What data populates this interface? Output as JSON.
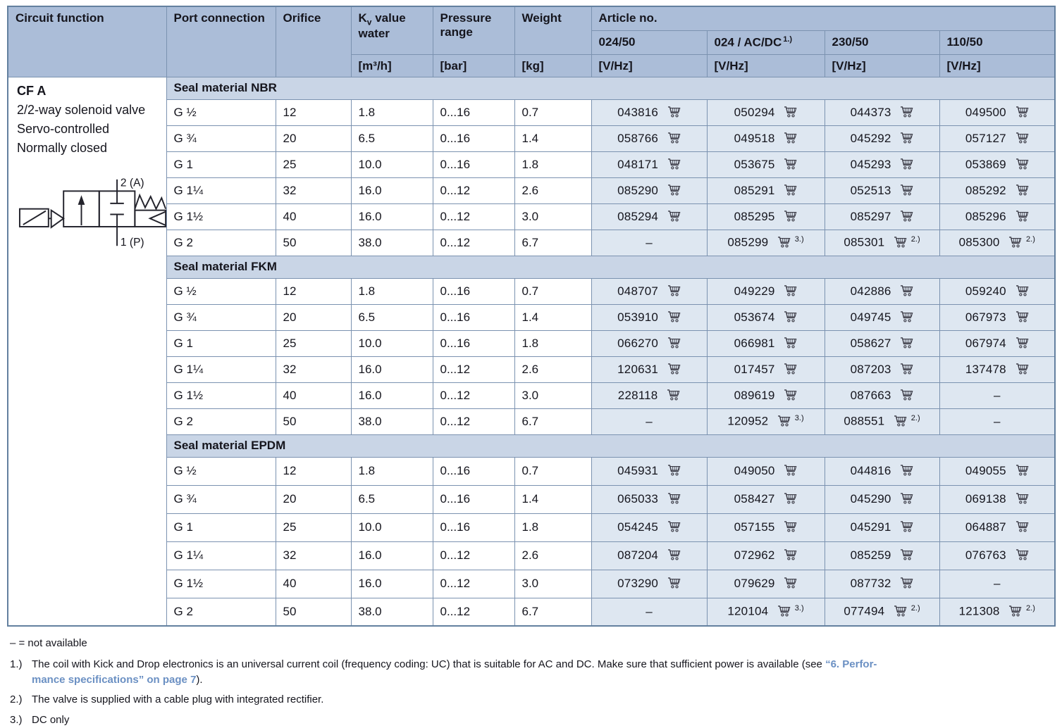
{
  "header": {
    "circuit_function": "Circuit function",
    "port_connection": "Port connection",
    "orifice": "Orifice",
    "kv_prefix": "K",
    "kv_sub": "v",
    "kv_suffix": " value water",
    "pressure_range": "Pressure range",
    "weight": "Weight",
    "article_group": "Article no.",
    "article_columns": [
      {
        "label": "024/50",
        "sup": ""
      },
      {
        "label": "024 / AC/DC",
        "sup": "1.)"
      },
      {
        "label": "230/50",
        "sup": ""
      },
      {
        "label": "110/50",
        "sup": ""
      }
    ],
    "unit_kv": "[m³/h]",
    "unit_pressure": "[bar]",
    "unit_weight": "[kg]",
    "unit_voltage": "[V/Hz]"
  },
  "circuit": {
    "code": "CF A",
    "description_lines": [
      "2/2-way solenoid valve",
      "Servo-controlled",
      "Normally closed"
    ],
    "port_top": "2 (A)",
    "port_bottom": "1 (P)"
  },
  "sections": [
    {
      "title": "Seal material NBR",
      "rows": [
        {
          "port": "G ½",
          "orifice": "12",
          "kv": "1.8",
          "pressure": "0...16",
          "weight": "0.7",
          "articles": [
            {
              "no": "043816",
              "cart": true,
              "sup": ""
            },
            {
              "no": "050294",
              "cart": true,
              "sup": ""
            },
            {
              "no": "044373",
              "cart": true,
              "sup": ""
            },
            {
              "no": "049500",
              "cart": true,
              "sup": ""
            }
          ]
        },
        {
          "port": "G ¾",
          "orifice": "20",
          "kv": "6.5",
          "pressure": "0...16",
          "weight": "1.4",
          "articles": [
            {
              "no": "058766",
              "cart": true,
              "sup": ""
            },
            {
              "no": "049518",
              "cart": true,
              "sup": ""
            },
            {
              "no": "045292",
              "cart": true,
              "sup": ""
            },
            {
              "no": "057127",
              "cart": true,
              "sup": ""
            }
          ]
        },
        {
          "port": "G 1",
          "orifice": "25",
          "kv": "10.0",
          "pressure": "0...16",
          "weight": "1.8",
          "articles": [
            {
              "no": "048171",
              "cart": true,
              "sup": ""
            },
            {
              "no": "053675",
              "cart": true,
              "sup": ""
            },
            {
              "no": "045293",
              "cart": true,
              "sup": ""
            },
            {
              "no": "053869",
              "cart": true,
              "sup": ""
            }
          ]
        },
        {
          "port": "G 1¼",
          "orifice": "32",
          "kv": "16.0",
          "pressure": "0...12",
          "weight": "2.6",
          "articles": [
            {
              "no": "085290",
              "cart": true,
              "sup": ""
            },
            {
              "no": "085291",
              "cart": true,
              "sup": ""
            },
            {
              "no": "052513",
              "cart": true,
              "sup": ""
            },
            {
              "no": "085292",
              "cart": true,
              "sup": ""
            }
          ]
        },
        {
          "port": "G 1½",
          "orifice": "40",
          "kv": "16.0",
          "pressure": "0...12",
          "weight": "3.0",
          "articles": [
            {
              "no": "085294",
              "cart": true,
              "sup": ""
            },
            {
              "no": "085295",
              "cart": true,
              "sup": ""
            },
            {
              "no": "085297",
              "cart": true,
              "sup": ""
            },
            {
              "no": "085296",
              "cart": true,
              "sup": ""
            }
          ]
        },
        {
          "port": "G 2",
          "orifice": "50",
          "kv": "38.0",
          "pressure": "0...12",
          "weight": "6.7",
          "articles": [
            {
              "no": "–",
              "cart": false,
              "sup": ""
            },
            {
              "no": "085299",
              "cart": true,
              "sup": "3.)"
            },
            {
              "no": "085301",
              "cart": true,
              "sup": "2.)"
            },
            {
              "no": "085300",
              "cart": true,
              "sup": "2.)"
            }
          ]
        }
      ]
    },
    {
      "title": "Seal material FKM",
      "rows": [
        {
          "port": "G ½",
          "orifice": "12",
          "kv": "1.8",
          "pressure": "0...16",
          "weight": "0.7",
          "articles": [
            {
              "no": "048707",
              "cart": true,
              "sup": ""
            },
            {
              "no": "049229",
              "cart": true,
              "sup": ""
            },
            {
              "no": "042886",
              "cart": true,
              "sup": ""
            },
            {
              "no": "059240",
              "cart": true,
              "sup": ""
            }
          ]
        },
        {
          "port": "G ¾",
          "orifice": "20",
          "kv": "6.5",
          "pressure": "0...16",
          "weight": "1.4",
          "articles": [
            {
              "no": "053910",
              "cart": true,
              "sup": ""
            },
            {
              "no": "053674",
              "cart": true,
              "sup": ""
            },
            {
              "no": "049745",
              "cart": true,
              "sup": ""
            },
            {
              "no": "067973",
              "cart": true,
              "sup": ""
            }
          ]
        },
        {
          "port": "G 1",
          "orifice": "25",
          "kv": "10.0",
          "pressure": "0...16",
          "weight": "1.8",
          "articles": [
            {
              "no": "066270",
              "cart": true,
              "sup": ""
            },
            {
              "no": "066981",
              "cart": true,
              "sup": ""
            },
            {
              "no": "058627",
              "cart": true,
              "sup": ""
            },
            {
              "no": "067974",
              "cart": true,
              "sup": ""
            }
          ]
        },
        {
          "port": "G 1¼",
          "orifice": "32",
          "kv": "16.0",
          "pressure": "0...12",
          "weight": "2.6",
          "articles": [
            {
              "no": "120631",
              "cart": true,
              "sup": ""
            },
            {
              "no": "017457",
              "cart": true,
              "sup": ""
            },
            {
              "no": "087203",
              "cart": true,
              "sup": ""
            },
            {
              "no": "137478",
              "cart": true,
              "sup": ""
            }
          ]
        },
        {
          "port": "G 1½",
          "orifice": "40",
          "kv": "16.0",
          "pressure": "0...12",
          "weight": "3.0",
          "articles": [
            {
              "no": "228118",
              "cart": true,
              "sup": ""
            },
            {
              "no": "089619",
              "cart": true,
              "sup": ""
            },
            {
              "no": "087663",
              "cart": true,
              "sup": ""
            },
            {
              "no": "–",
              "cart": false,
              "sup": ""
            }
          ]
        },
        {
          "port": "G 2",
          "orifice": "50",
          "kv": "38.0",
          "pressure": "0...12",
          "weight": "6.7",
          "articles": [
            {
              "no": "–",
              "cart": false,
              "sup": ""
            },
            {
              "no": "120952",
              "cart": true,
              "sup": "3.)"
            },
            {
              "no": "088551",
              "cart": true,
              "sup": "2.)"
            },
            {
              "no": "–",
              "cart": false,
              "sup": ""
            }
          ]
        }
      ]
    },
    {
      "title": "Seal material EPDM",
      "rows": [
        {
          "port": "G ½",
          "orifice": "12",
          "kv": "1.8",
          "pressure": "0...16",
          "weight": "0.7",
          "articles": [
            {
              "no": "045931",
              "cart": true,
              "sup": ""
            },
            {
              "no": "049050",
              "cart": true,
              "sup": ""
            },
            {
              "no": "044816",
              "cart": true,
              "sup": ""
            },
            {
              "no": "049055",
              "cart": true,
              "sup": ""
            }
          ]
        },
        {
          "port": "G ¾",
          "orifice": "20",
          "kv": "6.5",
          "pressure": "0...16",
          "weight": "1.4",
          "articles": [
            {
              "no": "065033",
              "cart": true,
              "sup": ""
            },
            {
              "no": "058427",
              "cart": true,
              "sup": ""
            },
            {
              "no": "045290",
              "cart": true,
              "sup": ""
            },
            {
              "no": "069138",
              "cart": true,
              "sup": ""
            }
          ]
        },
        {
          "port": "G 1",
          "orifice": "25",
          "kv": "10.0",
          "pressure": "0...16",
          "weight": "1.8",
          "articles": [
            {
              "no": "054245",
              "cart": true,
              "sup": ""
            },
            {
              "no": "057155",
              "cart": true,
              "sup": ""
            },
            {
              "no": "045291",
              "cart": true,
              "sup": ""
            },
            {
              "no": "064887",
              "cart": true,
              "sup": ""
            }
          ]
        },
        {
          "port": "G 1¼",
          "orifice": "32",
          "kv": "16.0",
          "pressure": "0...12",
          "weight": "2.6",
          "articles": [
            {
              "no": "087204",
              "cart": true,
              "sup": ""
            },
            {
              "no": "072962",
              "cart": true,
              "sup": ""
            },
            {
              "no": "085259",
              "cart": true,
              "sup": ""
            },
            {
              "no": "076763",
              "cart": true,
              "sup": ""
            }
          ]
        },
        {
          "port": "G 1½",
          "orifice": "40",
          "kv": "16.0",
          "pressure": "0...12",
          "weight": "3.0",
          "articles": [
            {
              "no": "073290",
              "cart": true,
              "sup": ""
            },
            {
              "no": "079629",
              "cart": true,
              "sup": ""
            },
            {
              "no": "087732",
              "cart": true,
              "sup": ""
            },
            {
              "no": "–",
              "cart": false,
              "sup": ""
            }
          ]
        },
        {
          "port": "G 2",
          "orifice": "50",
          "kv": "38.0",
          "pressure": "0...12",
          "weight": "6.7",
          "articles": [
            {
              "no": "–",
              "cart": false,
              "sup": ""
            },
            {
              "no": "120104",
              "cart": true,
              "sup": "3.)"
            },
            {
              "no": "077494",
              "cart": true,
              "sup": "2.)"
            },
            {
              "no": "121308",
              "cart": true,
              "sup": "2.)"
            }
          ]
        }
      ]
    }
  ],
  "footnotes": {
    "dash_legend": "– = not available",
    "fn1": {
      "marker": "1.)",
      "text_before": "The coil with Kick and Drop electronics is an universal current coil (frequency coding: UC) that is suitable for AC and DC. Make sure that sufficient power is available (see ",
      "link_line1": "“6. Perfor-",
      "link_line2": "mance specifications” on page 7",
      "text_after": ")."
    },
    "fn2": {
      "marker": "2.)",
      "text": "The valve is supplied with a cable plug with integrated rectifier."
    },
    "fn3": {
      "marker": "3.)",
      "text": "DC only"
    }
  },
  "colors": {
    "header_bg": "#abbdd8",
    "section_bg": "#c9d5e6",
    "article_cell_bg": "#dee7f1",
    "border": "#7b92b0",
    "text": "#15151d",
    "link": "#6b90c3"
  },
  "icons": {
    "cart": "cart-icon"
  }
}
